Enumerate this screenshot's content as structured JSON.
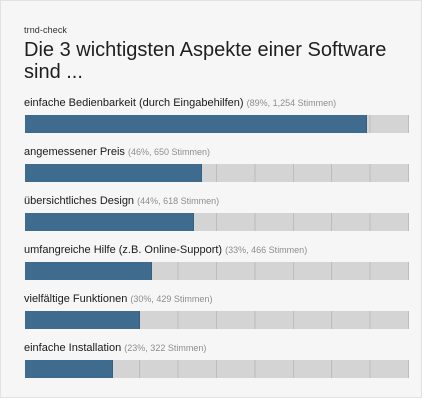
{
  "poll": {
    "brand": "trnd-check",
    "title": "Die 3 wichtigsten Aspekte einer Software sind ...",
    "options": [
      {
        "label": "einfache Bedienbarkeit (durch Eingabehilfen)",
        "stats": "(89%, 1,254 Stimmen)",
        "percent": 89
      },
      {
        "label": "angemessener Preis",
        "stats": "(46%, 650 Stimmen)",
        "percent": 46
      },
      {
        "label": "übersichtliches Design",
        "stats": "(44%, 618 Stimmen)",
        "percent": 44
      },
      {
        "label": "umfangreiche Hilfe (z.B. Online-Support)",
        "stats": "(33%, 466 Stimmen)",
        "percent": 33
      },
      {
        "label": "vielfältige Funktionen",
        "stats": "(30%, 429 Stimmen)",
        "percent": 30
      },
      {
        "label": "einfache Installation",
        "stats": "(23%, 322 Stimmen)",
        "percent": 23
      }
    ]
  },
  "colors": {
    "bar_fill": "#3f6b8e",
    "bar_track": "#d4d4d4",
    "panel_background": "#f6f6f6",
    "stats_text": "#8e8e8e"
  }
}
